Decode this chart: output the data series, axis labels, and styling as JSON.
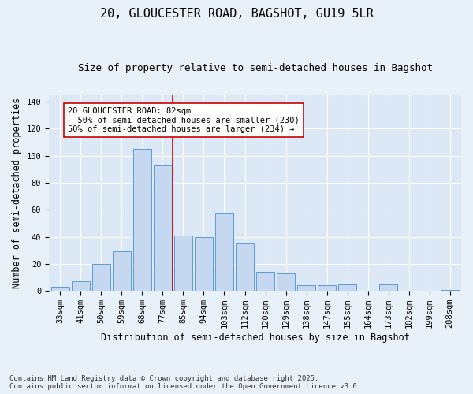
{
  "title_line1": "20, GLOUCESTER ROAD, BAGSHOT, GU19 5LR",
  "title_line2": "Size of property relative to semi-detached houses in Bagshot",
  "xlabel": "Distribution of semi-detached houses by size in Bagshot",
  "ylabel": "Number of semi-detached properties",
  "categories": [
    "33sqm",
    "41sqm",
    "50sqm",
    "59sqm",
    "68sqm",
    "77sqm",
    "85sqm",
    "94sqm",
    "103sqm",
    "112sqm",
    "120sqm",
    "129sqm",
    "138sqm",
    "147sqm",
    "155sqm",
    "164sqm",
    "173sqm",
    "182sqm",
    "199sqm",
    "208sqm"
  ],
  "values": [
    3,
    7,
    20,
    29,
    105,
    93,
    41,
    40,
    58,
    35,
    14,
    13,
    4,
    4,
    5,
    0,
    5,
    0,
    0,
    1
  ],
  "bar_color": "#c5d8f0",
  "bar_edge_color": "#5b9bd5",
  "vline_x_index": 5.5,
  "vline_color": "#cc0000",
  "annotation_text": "20 GLOUCESTER ROAD: 82sqm\n← 50% of semi-detached houses are smaller (230)\n50% of semi-detached houses are larger (234) →",
  "annotation_box_color": "#ffffff",
  "annotation_box_edge_color": "#cc0000",
  "ylim": [
    0,
    145
  ],
  "yticks": [
    0,
    20,
    40,
    60,
    80,
    100,
    120,
    140
  ],
  "footnote": "Contains HM Land Registry data © Crown copyright and database right 2025.\nContains public sector information licensed under the Open Government Licence v3.0.",
  "fig_bg_color": "#e8f0f8",
  "plot_bg_color": "#dce8f5",
  "grid_color": "#ffffff",
  "title_fontsize": 11,
  "subtitle_fontsize": 9,
  "label_fontsize": 8.5,
  "tick_fontsize": 7.5,
  "footnote_fontsize": 6.5,
  "annot_fontsize": 7.5
}
